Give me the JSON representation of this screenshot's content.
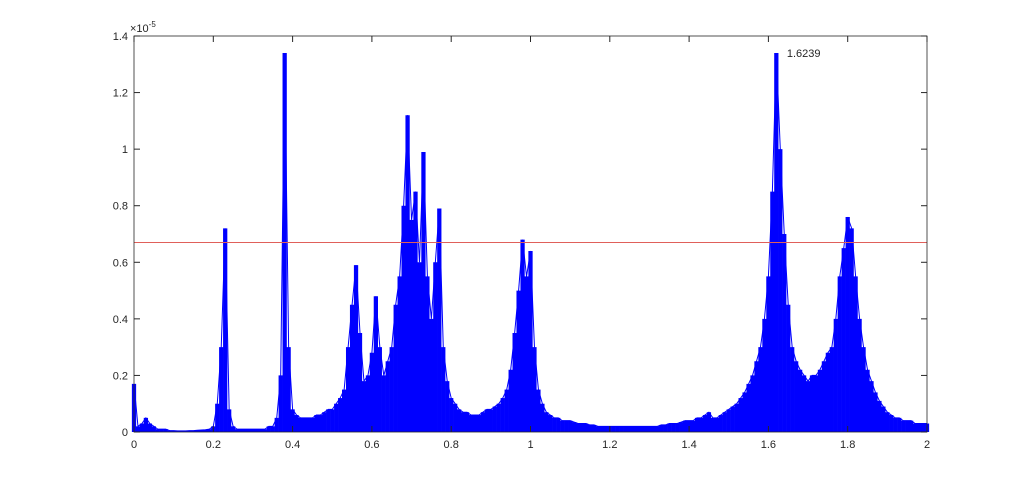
{
  "chart_data": {
    "type": "line",
    "xlim": [
      0,
      2
    ],
    "ylim": [
      0,
      1.4
    ],
    "xticks": [
      0,
      0.2,
      0.4,
      0.6,
      0.8,
      1,
      1.2,
      1.4,
      1.6,
      1.8,
      2
    ],
    "yticks": [
      0,
      0.2,
      0.4,
      0.6,
      0.8,
      1,
      1.2,
      1.4
    ],
    "y_multiplier": {
      "base": "×10",
      "exponent": "-5"
    },
    "reference_line": {
      "value": 0.67,
      "color": "#e0605a"
    },
    "annotation": {
      "label": "1.6239",
      "x": 1.6239,
      "y": 1.34
    },
    "series": [
      {
        "color": "#0000ff",
        "x": [
          0,
          0.01,
          0.02,
          0.03,
          0.04,
          0.05,
          0.06,
          0.07,
          0.08,
          0.09,
          0.1,
          0.11,
          0.12,
          0.13,
          0.14,
          0.15,
          0.16,
          0.17,
          0.18,
          0.19,
          0.2,
          0.21,
          0.22,
          0.23,
          0.24,
          0.25,
          0.26,
          0.27,
          0.28,
          0.29,
          0.3,
          0.31,
          0.32,
          0.33,
          0.34,
          0.35,
          0.36,
          0.37,
          0.38,
          0.39,
          0.4,
          0.41,
          0.42,
          0.43,
          0.44,
          0.45,
          0.46,
          0.47,
          0.48,
          0.49,
          0.5,
          0.51,
          0.52,
          0.53,
          0.54,
          0.55,
          0.56,
          0.57,
          0.58,
          0.59,
          0.6,
          0.61,
          0.62,
          0.63,
          0.64,
          0.65,
          0.66,
          0.67,
          0.68,
          0.69,
          0.7,
          0.71,
          0.72,
          0.73,
          0.74,
          0.75,
          0.76,
          0.77,
          0.78,
          0.79,
          0.8,
          0.81,
          0.82,
          0.83,
          0.84,
          0.85,
          0.86,
          0.87,
          0.88,
          0.89,
          0.9,
          0.91,
          0.92,
          0.93,
          0.94,
          0.95,
          0.96,
          0.97,
          0.98,
          0.99,
          1,
          1.01,
          1.02,
          1.03,
          1.04,
          1.05,
          1.06,
          1.07,
          1.08,
          1.09,
          1.1,
          1.11,
          1.12,
          1.13,
          1.14,
          1.15,
          1.16,
          1.17,
          1.18,
          1.19,
          1.2,
          1.21,
          1.22,
          1.23,
          1.24,
          1.25,
          1.26,
          1.27,
          1.28,
          1.29,
          1.3,
          1.31,
          1.32,
          1.33,
          1.34,
          1.35,
          1.36,
          1.37,
          1.38,
          1.39,
          1.4,
          1.41,
          1.42,
          1.43,
          1.44,
          1.45,
          1.46,
          1.47,
          1.48,
          1.49,
          1.5,
          1.51,
          1.52,
          1.53,
          1.54,
          1.55,
          1.56,
          1.57,
          1.58,
          1.59,
          1.6,
          1.61,
          1.62,
          1.63,
          1.64,
          1.65,
          1.66,
          1.67,
          1.68,
          1.69,
          1.7,
          1.71,
          1.72,
          1.73,
          1.74,
          1.75,
          1.76,
          1.77,
          1.78,
          1.79,
          1.8,
          1.81,
          1.82,
          1.83,
          1.84,
          1.85,
          1.86,
          1.87,
          1.88,
          1.89,
          1.9,
          1.91,
          1.92,
          1.93,
          1.94,
          1.95,
          1.96,
          1.97,
          1.98,
          1.99,
          2
        ],
        "values": [
          0.17,
          0.02,
          0.03,
          0.05,
          0.03,
          0.02,
          0.01,
          0.01,
          0.01,
          0.005,
          0.005,
          0.004,
          0.004,
          0.004,
          0.005,
          0.005,
          0.006,
          0.007,
          0.008,
          0.01,
          0.02,
          0.1,
          0.3,
          0.72,
          0.08,
          0.02,
          0.01,
          0.01,
          0.01,
          0.01,
          0.01,
          0.01,
          0.01,
          0.01,
          0.02,
          0.02,
          0.05,
          0.2,
          1.34,
          0.3,
          0.08,
          0.06,
          0.05,
          0.05,
          0.05,
          0.05,
          0.06,
          0.06,
          0.07,
          0.08,
          0.08,
          0.1,
          0.12,
          0.15,
          0.3,
          0.45,
          0.59,
          0.35,
          0.18,
          0.2,
          0.28,
          0.48,
          0.3,
          0.2,
          0.25,
          0.3,
          0.45,
          0.55,
          0.8,
          1.12,
          0.75,
          0.85,
          0.6,
          0.99,
          0.55,
          0.4,
          0.6,
          0.79,
          0.3,
          0.18,
          0.12,
          0.1,
          0.08,
          0.07,
          0.07,
          0.06,
          0.06,
          0.06,
          0.07,
          0.08,
          0.08,
          0.09,
          0.1,
          0.12,
          0.15,
          0.22,
          0.35,
          0.5,
          0.68,
          0.55,
          0.64,
          0.3,
          0.15,
          0.1,
          0.07,
          0.06,
          0.05,
          0.05,
          0.04,
          0.04,
          0.04,
          0.035,
          0.03,
          0.03,
          0.03,
          0.025,
          0.025,
          0.02,
          0.02,
          0.02,
          0.02,
          0.02,
          0.02,
          0.02,
          0.02,
          0.02,
          0.02,
          0.02,
          0.02,
          0.02,
          0.02,
          0.02,
          0.02,
          0.025,
          0.025,
          0.03,
          0.03,
          0.03,
          0.035,
          0.04,
          0.04,
          0.04,
          0.05,
          0.05,
          0.06,
          0.07,
          0.05,
          0.05,
          0.06,
          0.07,
          0.08,
          0.09,
          0.1,
          0.12,
          0.14,
          0.17,
          0.2,
          0.25,
          0.3,
          0.4,
          0.55,
          0.85,
          1.34,
          1.0,
          0.7,
          0.45,
          0.3,
          0.25,
          0.22,
          0.2,
          0.18,
          0.2,
          0.2,
          0.22,
          0.25,
          0.28,
          0.3,
          0.4,
          0.55,
          0.65,
          0.76,
          0.72,
          0.55,
          0.4,
          0.3,
          0.22,
          0.18,
          0.14,
          0.11,
          0.09,
          0.07,
          0.06,
          0.05,
          0.05,
          0.04,
          0.04,
          0.04,
          0.03,
          0.03,
          0.03,
          0.03
        ]
      }
    ]
  }
}
